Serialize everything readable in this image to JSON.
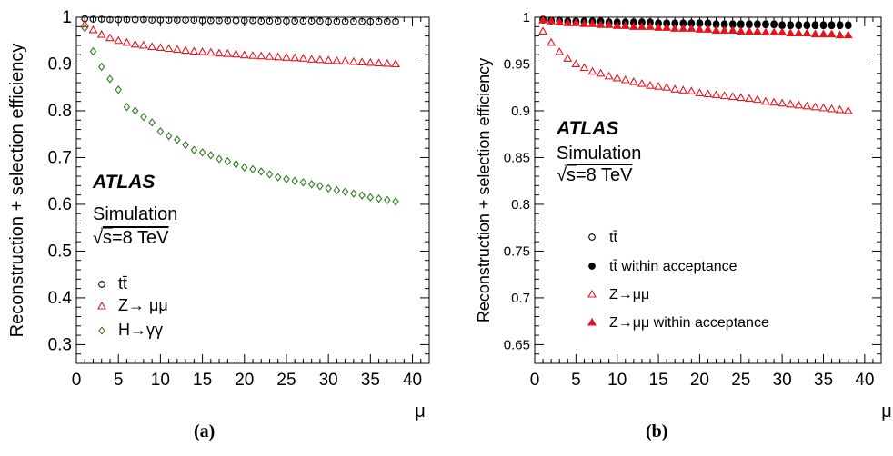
{
  "chart_data": [
    {
      "type": "scatter",
      "panel_label": "(a)",
      "xlabel": "μ",
      "ylabel": "Reconstruction + selection efficiency",
      "xlim": [
        0,
        42
      ],
      "ylim": [
        0.26,
        1.0
      ],
      "xticks": [
        "0",
        "5",
        "10",
        "15",
        "20",
        "25",
        "30",
        "35",
        "40"
      ],
      "yticks": [
        "0.3",
        "0.4",
        "0.5",
        "0.6",
        "0.7",
        "0.8",
        "0.9",
        "1"
      ],
      "annotations": {
        "experiment": "ATLAS",
        "simulation": "Simulation",
        "energy_sqrt": "√",
        "energy_rest": "s=8 TeV"
      },
      "legend_position": "bottom-left",
      "grid": false,
      "series": [
        {
          "name": "tt̄",
          "marker": "open-circle",
          "color": "#000000",
          "x": [
            1,
            2,
            3,
            4,
            5,
            6,
            7,
            8,
            9,
            10,
            11,
            12,
            13,
            14,
            15,
            16,
            17,
            18,
            19,
            20,
            21,
            22,
            23,
            24,
            25,
            26,
            27,
            28,
            29,
            30,
            31,
            32,
            33,
            34,
            35,
            36,
            37,
            38
          ],
          "y": [
            0.997,
            0.996,
            0.996,
            0.995,
            0.995,
            0.995,
            0.995,
            0.995,
            0.994,
            0.994,
            0.994,
            0.994,
            0.994,
            0.994,
            0.993,
            0.993,
            0.993,
            0.993,
            0.993,
            0.993,
            0.993,
            0.992,
            0.992,
            0.992,
            0.992,
            0.992,
            0.992,
            0.992,
            0.992,
            0.991,
            0.991,
            0.991,
            0.991,
            0.991,
            0.991,
            0.991,
            0.991,
            0.991
          ]
        },
        {
          "name": "Z→ μμ",
          "marker": "open-triangle",
          "color": "#e4151f",
          "x": [
            1,
            2,
            3,
            4,
            5,
            6,
            7,
            8,
            9,
            10,
            11,
            12,
            13,
            14,
            15,
            16,
            17,
            18,
            19,
            20,
            21,
            22,
            23,
            24,
            25,
            26,
            27,
            28,
            29,
            30,
            31,
            32,
            33,
            34,
            35,
            36,
            37,
            38
          ],
          "y": [
            0.985,
            0.973,
            0.963,
            0.956,
            0.95,
            0.946,
            0.942,
            0.94,
            0.937,
            0.935,
            0.933,
            0.931,
            0.929,
            0.927,
            0.926,
            0.925,
            0.923,
            0.922,
            0.921,
            0.919,
            0.918,
            0.917,
            0.916,
            0.915,
            0.914,
            0.913,
            0.912,
            0.91,
            0.909,
            0.908,
            0.907,
            0.906,
            0.905,
            0.904,
            0.903,
            0.902,
            0.901,
            0.9
          ]
        },
        {
          "name": "H→γγ",
          "marker": "open-diamond",
          "color": "#2d7a1f",
          "x": [
            1,
            2,
            3,
            4,
            5,
            6,
            7,
            8,
            9,
            10,
            11,
            12,
            13,
            14,
            15,
            16,
            17,
            18,
            19,
            20,
            21,
            22,
            23,
            24,
            25,
            26,
            27,
            28,
            29,
            30,
            31,
            32,
            33,
            34,
            35,
            36,
            37,
            38
          ],
          "y": [
            0.977,
            0.927,
            0.894,
            0.868,
            0.845,
            0.808,
            0.8,
            0.787,
            0.775,
            0.756,
            0.746,
            0.738,
            0.727,
            0.716,
            0.711,
            0.705,
            0.697,
            0.692,
            0.686,
            0.679,
            0.675,
            0.67,
            0.664,
            0.658,
            0.654,
            0.65,
            0.647,
            0.643,
            0.639,
            0.634,
            0.63,
            0.627,
            0.623,
            0.619,
            0.615,
            0.612,
            0.609,
            0.606
          ]
        }
      ]
    },
    {
      "type": "scatter",
      "panel_label": "(b)",
      "xlabel": "μ",
      "ylabel": "Reconstruction + selection efficiency",
      "xlim": [
        0,
        42
      ],
      "ylim": [
        0.63,
        1.0
      ],
      "xticks": [
        "0",
        "5",
        "10",
        "15",
        "20",
        "25",
        "30",
        "35",
        "40"
      ],
      "yticks": [
        "0.65",
        "0.7",
        "0.75",
        "0.8",
        "0.85",
        "0.9",
        "0.95",
        "1"
      ],
      "annotations": {
        "experiment": "ATLAS",
        "simulation": "Simulation",
        "energy_sqrt": "√",
        "energy_rest": "s=8 TeV"
      },
      "legend_position": "bottom-center",
      "grid": false,
      "series": [
        {
          "name": "tt̄",
          "marker": "open-circle",
          "color": "#000000",
          "x": [
            1,
            2,
            3,
            4,
            5,
            6,
            7,
            8,
            9,
            10,
            11,
            12,
            13,
            14,
            15,
            16,
            17,
            18,
            19,
            20,
            21,
            22,
            23,
            24,
            25,
            26,
            27,
            28,
            29,
            30,
            31,
            32,
            33,
            34,
            35,
            36,
            37,
            38
          ],
          "y": [
            0.997,
            0.996,
            0.996,
            0.995,
            0.995,
            0.995,
            0.995,
            0.995,
            0.994,
            0.994,
            0.994,
            0.994,
            0.994,
            0.994,
            0.993,
            0.993,
            0.993,
            0.993,
            0.993,
            0.993,
            0.993,
            0.992,
            0.992,
            0.992,
            0.992,
            0.992,
            0.992,
            0.992,
            0.992,
            0.991,
            0.991,
            0.991,
            0.991,
            0.991,
            0.991,
            0.991,
            0.991,
            0.991
          ]
        },
        {
          "name": "tt̄ within acceptance",
          "marker": "filled-circle",
          "color": "#000000",
          "x": [
            1,
            2,
            3,
            4,
            5,
            6,
            7,
            8,
            9,
            10,
            11,
            12,
            13,
            14,
            15,
            16,
            17,
            18,
            19,
            20,
            21,
            22,
            23,
            24,
            25,
            26,
            27,
            28,
            29,
            30,
            31,
            32,
            33,
            34,
            35,
            36,
            37,
            38
          ],
          "y": [
            0.998,
            0.997,
            0.997,
            0.996,
            0.996,
            0.996,
            0.996,
            0.996,
            0.995,
            0.995,
            0.995,
            0.995,
            0.995,
            0.995,
            0.994,
            0.994,
            0.994,
            0.994,
            0.994,
            0.994,
            0.994,
            0.993,
            0.993,
            0.993,
            0.993,
            0.993,
            0.993,
            0.993,
            0.993,
            0.992,
            0.992,
            0.992,
            0.992,
            0.992,
            0.992,
            0.992,
            0.992,
            0.992
          ]
        },
        {
          "name": "Z→μμ",
          "marker": "open-triangle",
          "color": "#e4151f",
          "x": [
            1,
            2,
            3,
            4,
            5,
            6,
            7,
            8,
            9,
            10,
            11,
            12,
            13,
            14,
            15,
            16,
            17,
            18,
            19,
            20,
            21,
            22,
            23,
            24,
            25,
            26,
            27,
            28,
            29,
            30,
            31,
            32,
            33,
            34,
            35,
            36,
            37,
            38
          ],
          "y": [
            0.985,
            0.973,
            0.963,
            0.956,
            0.95,
            0.946,
            0.942,
            0.94,
            0.937,
            0.935,
            0.933,
            0.931,
            0.929,
            0.927,
            0.926,
            0.925,
            0.923,
            0.922,
            0.921,
            0.919,
            0.918,
            0.917,
            0.916,
            0.915,
            0.914,
            0.913,
            0.912,
            0.91,
            0.909,
            0.908,
            0.907,
            0.906,
            0.905,
            0.904,
            0.903,
            0.902,
            0.901,
            0.9
          ]
        },
        {
          "name": "Z→μμ within acceptance",
          "marker": "filled-triangle",
          "color": "#e4151f",
          "x": [
            1,
            2,
            3,
            4,
            5,
            6,
            7,
            8,
            9,
            10,
            11,
            12,
            13,
            14,
            15,
            16,
            17,
            18,
            19,
            20,
            21,
            22,
            23,
            24,
            25,
            26,
            27,
            28,
            29,
            30,
            31,
            32,
            33,
            34,
            35,
            36,
            37,
            38
          ],
          "y": [
            0.997,
            0.996,
            0.995,
            0.994,
            0.994,
            0.993,
            0.993,
            0.992,
            0.992,
            0.991,
            0.991,
            0.99,
            0.99,
            0.99,
            0.989,
            0.989,
            0.988,
            0.988,
            0.988,
            0.987,
            0.987,
            0.986,
            0.986,
            0.986,
            0.985,
            0.985,
            0.985,
            0.984,
            0.984,
            0.984,
            0.983,
            0.983,
            0.983,
            0.982,
            0.982,
            0.982,
            0.981,
            0.981
          ]
        }
      ]
    }
  ]
}
